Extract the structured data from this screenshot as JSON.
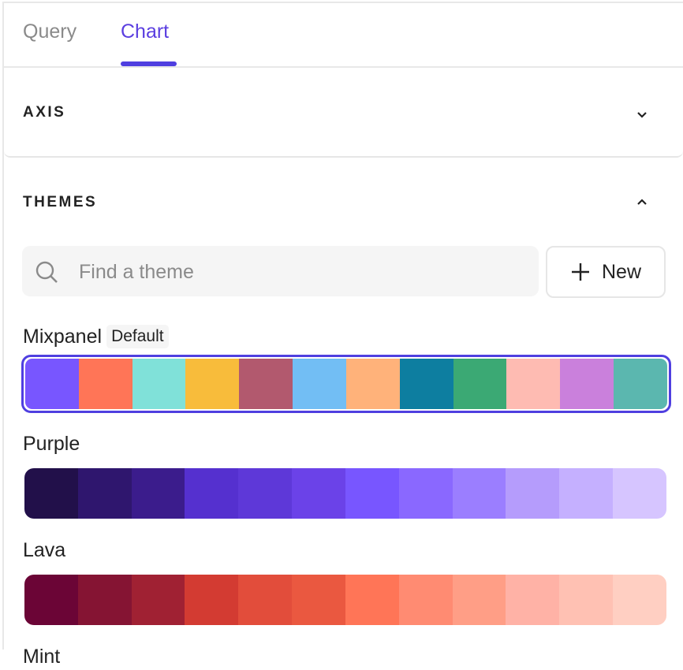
{
  "tabs": [
    {
      "label": "Query",
      "active": false
    },
    {
      "label": "Chart",
      "active": true
    }
  ],
  "accent": "#4F3FE0",
  "axis": {
    "title": "AXIS",
    "expanded": false,
    "icon": "chevron-down-icon"
  },
  "themes": {
    "title": "THEMES",
    "expanded": true,
    "icon": "chevron-up-icon",
    "search": {
      "placeholder": "Find a theme",
      "value": ""
    },
    "new_label": "New",
    "items": [
      {
        "name": "Mixpanel",
        "badge": "Default",
        "selected": true,
        "colors": [
          "#7856FF",
          "#FF7557",
          "#80E1D9",
          "#F8BC3B",
          "#B2596E",
          "#72BEF4",
          "#FFB27A",
          "#0D7EA0",
          "#3BA974",
          "#FEBBB2",
          "#CA80DC",
          "#5BB7AF"
        ]
      },
      {
        "name": "Purple",
        "selected": false,
        "colors": [
          "#22104A",
          "#2F166E",
          "#3B1C8C",
          "#5530CF",
          "#5E38D8",
          "#6B42E8",
          "#7856FF",
          "#8A68FF",
          "#9B7EFF",
          "#B59CFC",
          "#C5B0FF",
          "#D6C5FF"
        ]
      },
      {
        "name": "Lava",
        "selected": false,
        "colors": [
          "#6B0536",
          "#851433",
          "#A02133",
          "#D33B32",
          "#E24D3B",
          "#EA5840",
          "#FF7557",
          "#FF8B72",
          "#FF9E86",
          "#FFB2A6",
          "#FFC1B3",
          "#FFCFC2"
        ]
      },
      {
        "name": "Mint",
        "selected": false,
        "colors": []
      }
    ]
  }
}
